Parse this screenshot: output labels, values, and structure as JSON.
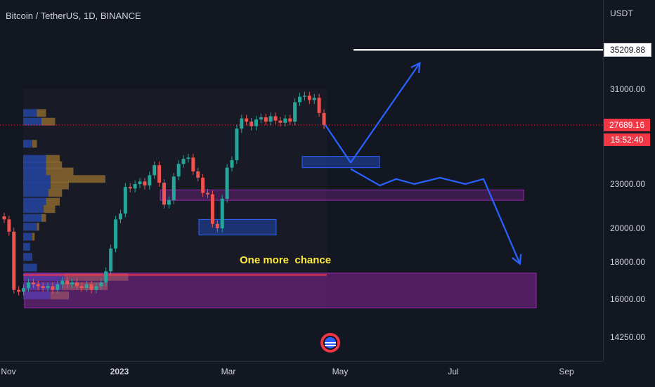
{
  "header": {
    "symbol_title": "Bitcoin / TetherUS, 1D, BINANCE"
  },
  "price_axis": {
    "currency": "USDT",
    "ticks": [
      "31000.00",
      "23000.00",
      "20000.00",
      "18000.00",
      "16000.00",
      "14250.00"
    ],
    "target_badge": "35209.88",
    "last_price_badge": "27689.16",
    "countdown_badge": "15:52:40"
  },
  "time_axis": {
    "ticks": [
      "Nov",
      "2023",
      "Mar",
      "May",
      "Jul",
      "Sep"
    ]
  },
  "annotation": {
    "text": "One more  chance"
  },
  "colors": {
    "background": "#131722",
    "up_candle": "#26a69a",
    "down_candle": "#ef5350",
    "volume_up": "#2962ff",
    "volume_down": "#e0a030",
    "zone_purple": "#9c27b0",
    "zone_blue": "#2962ff",
    "projection": "#2962ff",
    "last_price": "#f23645"
  },
  "icons": {
    "logo": "flag-globe-logo-icon"
  },
  "chart_data": {
    "type": "candlestick",
    "title": "Bitcoin / TetherUS, 1D, BINANCE",
    "y_unit": "USDT",
    "y_ticks": [
      31000,
      23000,
      20000,
      18000,
      16000,
      14250
    ],
    "x_ticks": [
      "Nov",
      "2023",
      "Mar",
      "May",
      "Jul",
      "Sep"
    ],
    "last_price": 27689.16,
    "target_level": 35209.88,
    "close_series": [
      20600,
      19800,
      16500,
      16400,
      16600,
      16900,
      16800,
      16700,
      16600,
      16700,
      16500,
      16800,
      17000,
      16800,
      16900,
      16700,
      16600,
      16800,
      16500,
      16700,
      16900,
      17500,
      18800,
      20600,
      21000,
      22800,
      22700,
      23000,
      23200,
      22900,
      23700,
      24500,
      23100,
      21600,
      21900,
      23600,
      24600,
      25000,
      25100,
      24000,
      23500,
      22400,
      22300,
      20300,
      20000,
      22000,
      24300,
      24900,
      27400,
      28300,
      28000,
      27600,
      28200,
      28400,
      28000,
      28500,
      28100,
      27900,
      28300,
      28000,
      29800,
      30300,
      30400,
      30000,
      30200,
      28800,
      27700
    ],
    "projection_path": [
      {
        "date": "2023-04-24",
        "price": 27700
      },
      {
        "date": "2023-05-08",
        "price": 24700
      },
      {
        "date": "2023-06-15",
        "price": 33800
      }
    ],
    "projection_alt_path": [
      {
        "date": "2023-05-08",
        "price": 24200
      },
      {
        "date": "2023-05-24",
        "price": 22900
      },
      {
        "date": "2023-06-02",
        "price": 23400
      },
      {
        "date": "2023-06-12",
        "price": 23000
      },
      {
        "date": "2023-06-26",
        "price": 23500
      },
      {
        "date": "2023-07-10",
        "price": 23000
      },
      {
        "date": "2023-07-20",
        "price": 23400
      },
      {
        "date": "2023-08-09",
        "price": 17900
      }
    ],
    "zones": [
      {
        "name": "support-zone-upper",
        "price_low": 21900,
        "price_high": 22600
      },
      {
        "name": "support-zone-lower",
        "price_low": 15600,
        "price_high": 17400
      },
      {
        "name": "demand-zone-march",
        "price_low": 19600,
        "price_high": 20600
      },
      {
        "name": "demand-zone-may",
        "price_low": 24300,
        "price_high": 25200
      }
    ],
    "lines": [
      {
        "name": "vpoc-line",
        "price": 17300
      },
      {
        "name": "target-line",
        "price": 35209.88
      }
    ],
    "volume_profile_rows": [
      {
        "price": 28800,
        "up": 0.3,
        "down": 0.2
      },
      {
        "price": 28000,
        "up": 0.4,
        "down": 0.3
      },
      {
        "price": 26200,
        "up": 0.2,
        "down": 0.1
      },
      {
        "price": 25000,
        "up": 0.5,
        "down": 0.3
      },
      {
        "price": 24500,
        "up": 0.5,
        "down": 0.35
      },
      {
        "price": 24000,
        "up": 0.5,
        "down": 0.6
      },
      {
        "price": 23400,
        "up": 0.6,
        "down": 1.2
      },
      {
        "price": 22900,
        "up": 0.6,
        "down": 0.4
      },
      {
        "price": 22400,
        "up": 0.55,
        "down": 0.3
      },
      {
        "price": 21800,
        "up": 0.5,
        "down": 0.3
      },
      {
        "price": 21300,
        "up": 0.45,
        "down": 0.25
      },
      {
        "price": 20700,
        "up": 0.4,
        "down": 0.1
      },
      {
        "price": 20100,
        "up": 0.3,
        "down": 0.05
      },
      {
        "price": 19500,
        "up": 0.2,
        "down": 0.05
      },
      {
        "price": 18900,
        "up": 0.15,
        "down": 0.0
      },
      {
        "price": 18300,
        "up": 0.2,
        "down": 0.0
      },
      {
        "price": 17700,
        "up": 0.3,
        "down": 0.0
      },
      {
        "price": 17200,
        "up": 0.9,
        "down": 1.4
      },
      {
        "price": 16700,
        "up": 0.85,
        "down": 1.0
      },
      {
        "price": 16200,
        "up": 0.6,
        "down": 0.4
      }
    ]
  }
}
